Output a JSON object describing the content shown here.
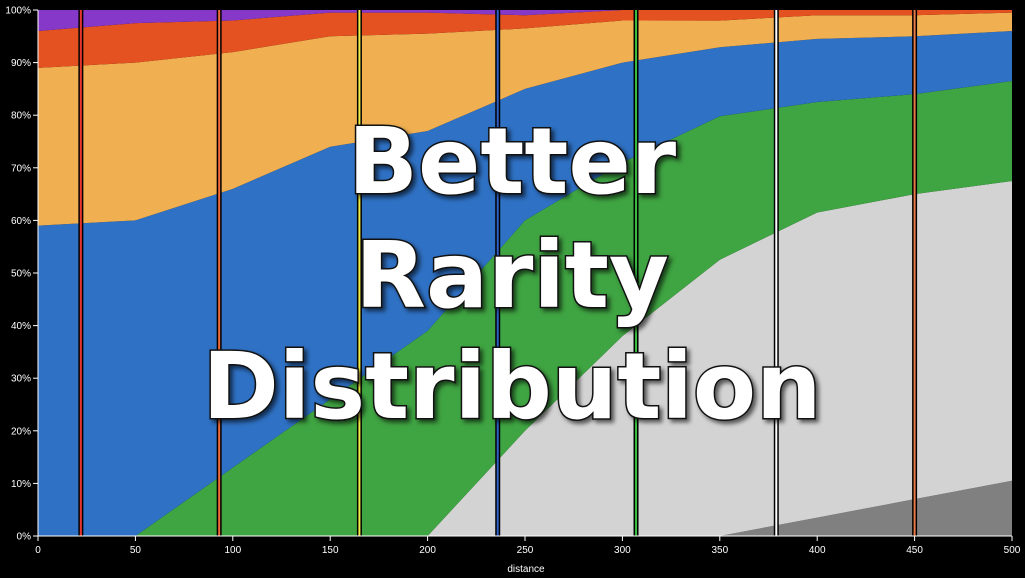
{
  "chart_data": {
    "type": "area",
    "stacking": "percent",
    "xlabel": "distance",
    "ylabel": "",
    "xlim": [
      0,
      500
    ],
    "ylim": [
      0,
      100
    ],
    "x_ticks": [
      0,
      50,
      100,
      150,
      200,
      250,
      300,
      350,
      400,
      450,
      500
    ],
    "y_ticks": [
      "0%",
      "10%",
      "20%",
      "30%",
      "40%",
      "50%",
      "60%",
      "70%",
      "80%",
      "90%",
      "100%"
    ],
    "x": [
      0,
      50,
      100,
      150,
      200,
      250,
      300,
      350,
      400,
      450,
      500
    ],
    "series": [
      {
        "color": "#808080",
        "values": [
          0,
          0,
          0,
          0,
          0,
          0,
          0,
          0,
          3.5,
          7,
          10.5
        ]
      },
      {
        "color": "#d3d3d3",
        "values": [
          0,
          0,
          0,
          0,
          0,
          20,
          38,
          52,
          58,
          58,
          57
        ]
      },
      {
        "color": "#3fa442",
        "values": [
          0,
          0,
          13,
          26,
          39,
          40,
          33,
          27,
          21,
          19,
          19
        ]
      },
      {
        "color": "#2f71c4",
        "values": [
          59,
          60,
          53,
          48,
          38,
          25,
          19,
          13,
          12,
          11,
          9.5
        ]
      },
      {
        "color": "#f0b052",
        "values": [
          30,
          30,
          26,
          21,
          18.5,
          11.5,
          8,
          5,
          4.5,
          4,
          3.5
        ]
      },
      {
        "color": "#e55221",
        "values": [
          7,
          7.5,
          6,
          4.5,
          4,
          2.5,
          2,
          2,
          1,
          1,
          0.5
        ]
      },
      {
        "color": "#8638c8",
        "values": [
          4,
          2.5,
          2,
          0.5,
          0.5,
          1,
          0,
          0,
          0,
          0,
          0
        ]
      }
    ],
    "markers": [
      {
        "x": 22,
        "color": "#e8362e"
      },
      {
        "x": 93,
        "color": "#f06a3a"
      },
      {
        "x": 165,
        "color": "#f2ee48"
      },
      {
        "x": 236,
        "color": "#3060c8"
      },
      {
        "x": 307,
        "color": "#3ac040"
      },
      {
        "x": 379,
        "color": "#ffffff"
      },
      {
        "x": 450,
        "color": "#ea7a48"
      }
    ],
    "overlay_text": [
      "Better",
      "Rarity",
      "Distribution"
    ]
  }
}
